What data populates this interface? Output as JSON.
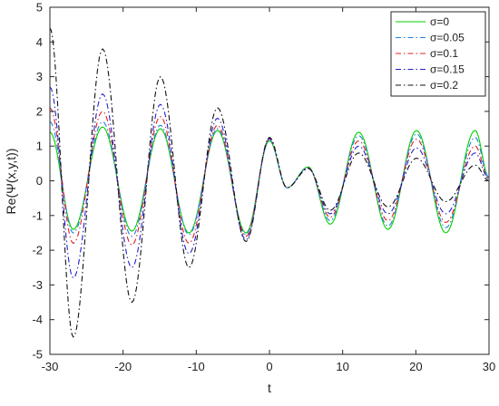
{
  "chart_data": {
    "type": "line",
    "title": "",
    "xlabel": "t",
    "ylabel": "Re(Ψ(x,y,t))",
    "xlim": [
      -30,
      30
    ],
    "ylim": [
      -5,
      5
    ],
    "xticks": [
      "-30",
      "-20",
      "-10",
      "0",
      "10",
      "20",
      "30"
    ],
    "yticks": [
      "5",
      "4",
      "3",
      "2",
      "1",
      "0",
      "-1",
      "-2",
      "-3",
      "-4",
      "-5"
    ],
    "grid": false,
    "legend_position": "top-right",
    "series": [
      {
        "name": "σ=0",
        "color": "#00d000",
        "dash": "solid",
        "x": [
          -30,
          -26.8,
          -22.8,
          -18.8,
          -14.9,
          -11,
          -7.1,
          -3.2,
          0,
          2.4,
          5.3,
          8.3,
          12.2,
          16.2,
          20.1,
          24.1,
          28.1,
          30
        ],
        "y": [
          1.4,
          -1.4,
          1.55,
          -1.45,
          1.5,
          -1.5,
          1.45,
          -1.5,
          1.15,
          -0.2,
          0.4,
          -1.25,
          1.4,
          -1.4,
          1.45,
          -1.5,
          1.45,
          0.1
        ]
      },
      {
        "name": "σ=0.05",
        "color": "#2080e0",
        "dash": "dashdot",
        "x": [
          -30,
          -26.8,
          -22.8,
          -18.8,
          -14.9,
          -11,
          -7.1,
          -3.2,
          0,
          2.4,
          5.3,
          8.3,
          12.2,
          16.2,
          20.1,
          24.1,
          28.1,
          30
        ],
        "y": [
          1.7,
          -1.5,
          1.7,
          -1.6,
          1.6,
          -1.55,
          1.5,
          -1.55,
          1.18,
          -0.2,
          0.38,
          -1.15,
          1.3,
          -1.3,
          1.35,
          -1.35,
          1.25,
          0.1
        ]
      },
      {
        "name": "σ=0.1",
        "color": "#e02020",
        "dash": "dashdot",
        "x": [
          -30,
          -26.8,
          -22.8,
          -18.8,
          -14.9,
          -11,
          -7.1,
          -3.2,
          0,
          2.4,
          5.3,
          8.3,
          12.2,
          16.2,
          20.1,
          24.1,
          28.1,
          30
        ],
        "y": [
          2.1,
          -1.8,
          2.0,
          -1.85,
          1.85,
          -1.8,
          1.6,
          -1.6,
          1.2,
          -0.2,
          0.37,
          -1.05,
          1.15,
          -1.15,
          1.2,
          -1.2,
          1.0,
          0.05
        ]
      },
      {
        "name": "σ=0.15",
        "color": "#2020d0",
        "dash": "dashdot",
        "x": [
          -30,
          -26.8,
          -22.8,
          -18.8,
          -14.9,
          -11,
          -7.1,
          -3.2,
          0,
          2.4,
          5.3,
          8.3,
          12.2,
          16.2,
          20.1,
          24.1,
          28.1,
          30
        ],
        "y": [
          2.7,
          -2.8,
          2.5,
          -2.5,
          2.2,
          -2.1,
          1.8,
          -1.7,
          1.22,
          -0.2,
          0.36,
          -0.95,
          1.0,
          -0.95,
          0.95,
          -0.95,
          0.8,
          0.05
        ]
      },
      {
        "name": "σ=0.2",
        "color": "#111111",
        "dash": "dashdot",
        "x": [
          -30,
          -26.8,
          -22.8,
          -18.8,
          -14.9,
          -11,
          -7.1,
          -3.2,
          0,
          2.4,
          5.3,
          8.3,
          12.2,
          16.2,
          20.1,
          24.1,
          28.1,
          30
        ],
        "y": [
          4.4,
          -4.5,
          3.8,
          -3.5,
          3.0,
          -2.5,
          2.1,
          -1.75,
          1.25,
          -0.2,
          0.35,
          -0.85,
          0.8,
          -0.75,
          0.65,
          -0.6,
          0.45,
          0.0
        ]
      }
    ]
  }
}
